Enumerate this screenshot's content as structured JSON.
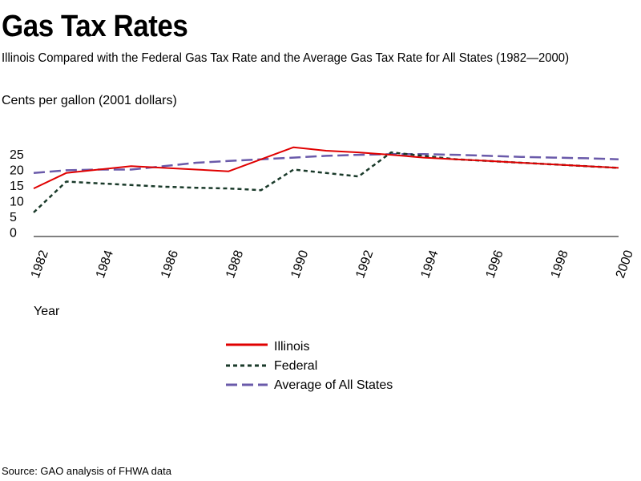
{
  "title": "Gas Tax Rates",
  "subtitle": "Illinois Compared with the Federal Gas Tax Rate and the Average Gas Tax Rate for All States (1982—2000)",
  "source": "Source: GAO analysis of FHWA data",
  "colors": {
    "illinois": "#e00000",
    "federal": "#1a3a2a",
    "average": "#6a5aaa",
    "axis": "#000000"
  },
  "chart_data": {
    "type": "line",
    "ylabel": "Cents per gallon (2001 dollars)",
    "xlabel": "Year",
    "ylim": [
      0,
      25
    ],
    "yticks": [
      0,
      5,
      10,
      15,
      20,
      25
    ],
    "xlim": [
      1982,
      2000
    ],
    "xticks": [
      "1982",
      "1984",
      "1986",
      "1988",
      "1990",
      "1992",
      "1994",
      "1996",
      "1998",
      "2000"
    ],
    "x": [
      1982,
      1983,
      1984,
      1985,
      1986,
      1987,
      1988,
      1989,
      1990,
      1991,
      1992,
      1993,
      1994,
      1995,
      1996,
      1997,
      1998,
      1999,
      2000
    ],
    "series": [
      {
        "name": "Illinois",
        "style": "solid",
        "values": [
          14,
          18.5,
          19.5,
          20.5,
          20,
          19.5,
          19,
          22.5,
          26,
          25,
          24.5,
          23.8,
          23,
          22.5,
          22,
          21.5,
          21,
          20.5,
          20
        ]
      },
      {
        "name": "Federal",
        "style": "dotted",
        "values": [
          7,
          16,
          15.5,
          15,
          14.5,
          14.2,
          14,
          13.5,
          19.5,
          18.5,
          17.5,
          24.5,
          23.5,
          22.5,
          22,
          21.5,
          21,
          20.5,
          20
        ]
      },
      {
        "name": "Average of All States",
        "style": "dashed",
        "values": [
          18.5,
          19.3,
          19.5,
          19.5,
          20.5,
          21.5,
          22,
          22.5,
          23,
          23.5,
          23.8,
          24,
          24,
          23.8,
          23.5,
          23.2,
          23,
          22.8,
          22.5
        ]
      }
    ],
    "grid": false,
    "legend_position": "bottom-center"
  }
}
